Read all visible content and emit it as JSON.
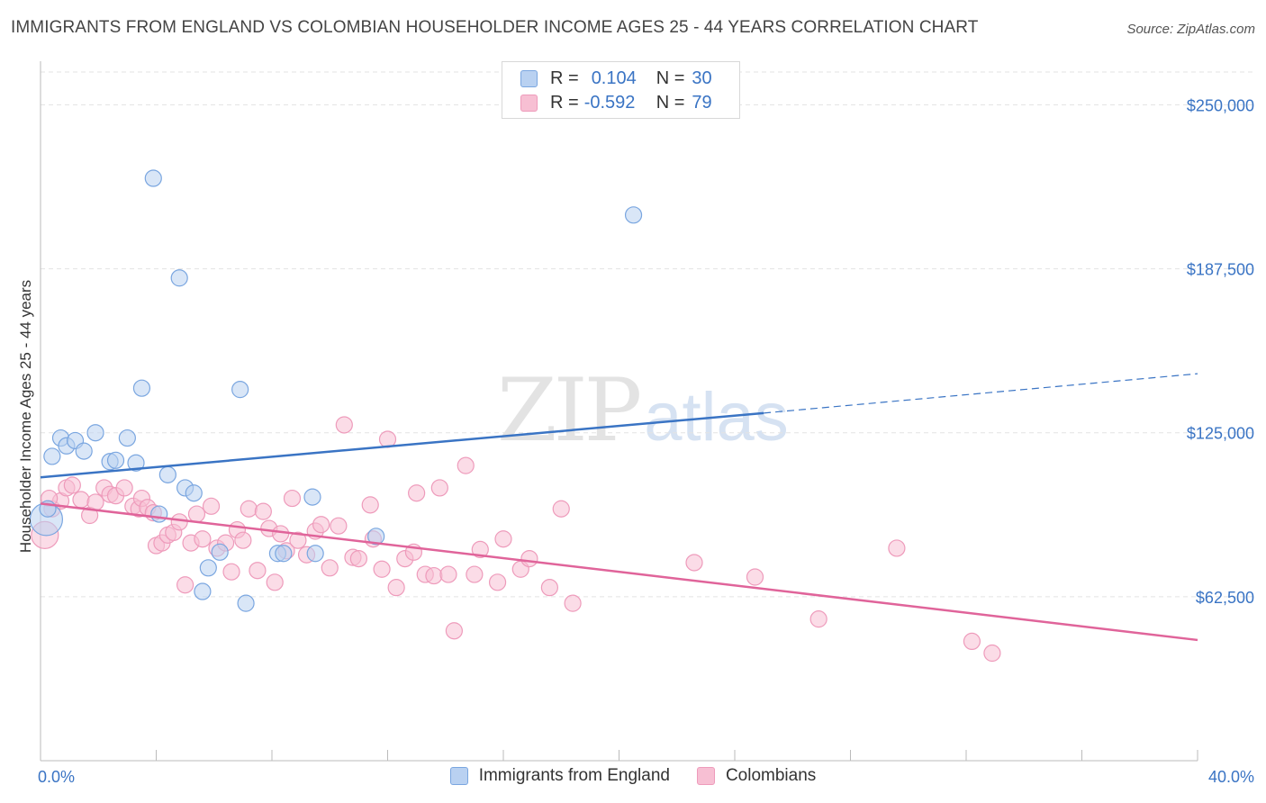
{
  "title": "IMMIGRANTS FROM ENGLAND VS COLOMBIAN HOUSEHOLDER INCOME AGES 25 - 44 YEARS CORRELATION CHART",
  "source": "Source: ZipAtlas.com",
  "watermark": {
    "zip": "ZIP",
    "atlas": "atlas"
  },
  "colors": {
    "blue": "#3a74c4",
    "blue_fill": "#b9d1f1",
    "blue_stroke": "#7aa6e0",
    "pink": "#e0649a",
    "pink_fill": "#f7bfd3",
    "pink_stroke": "#ee9bbb",
    "grid": "#e3e3e3"
  },
  "legend_top": {
    "rows": [
      {
        "r_label": "R =",
        "r_value": "0.104",
        "n_label": "N =",
        "n_value": "30"
      },
      {
        "r_label": "R =",
        "r_value": "-0.592",
        "n_label": "N =",
        "n_value": "79"
      }
    ]
  },
  "legend_bottom": [
    "Immigrants from England",
    "Colombians"
  ],
  "chart_data": {
    "type": "scatter",
    "title": "IMMIGRANTS FROM ENGLAND VS COLOMBIAN HOUSEHOLDER INCOME AGES 25 - 44 YEARS CORRELATION CHART",
    "xlabel": "",
    "ylabel": "Householder Income Ages 25 - 44 years",
    "xlim": [
      0,
      40
    ],
    "ylim": [
      0,
      262500
    ],
    "x_tick_labels": [
      "0.0%",
      "40.0%"
    ],
    "y_ticks": [
      62500,
      125000,
      187500,
      250000
    ],
    "y_tick_labels": [
      "$62,500",
      "$125,000",
      "$187,500",
      "$250,000"
    ],
    "series": [
      {
        "name": "Immigrants from England",
        "r": 0.104,
        "n": 30,
        "trend": {
          "x0": 0,
          "y0": 108000,
          "x1": 25,
          "y1": 132500,
          "x_dash_end": 40,
          "y_dash_end": 147500
        },
        "points": [
          [
            0.2,
            92000
          ],
          [
            0.4,
            116000
          ],
          [
            0.7,
            123000
          ],
          [
            0.9,
            120000
          ],
          [
            1.2,
            122000
          ],
          [
            1.5,
            118000
          ],
          [
            1.9,
            125000
          ],
          [
            2.4,
            114000
          ],
          [
            2.6,
            114500
          ],
          [
            3.0,
            123000
          ],
          [
            3.3,
            113500
          ],
          [
            3.5,
            142000
          ],
          [
            3.9,
            222000
          ],
          [
            4.1,
            94000
          ],
          [
            4.4,
            109000
          ],
          [
            4.8,
            184000
          ],
          [
            5.0,
            104000
          ],
          [
            5.3,
            102000
          ],
          [
            5.6,
            64500
          ],
          [
            5.8,
            73500
          ],
          [
            6.2,
            79500
          ],
          [
            6.9,
            141500
          ],
          [
            7.1,
            60000
          ],
          [
            8.2,
            79000
          ],
          [
            8.4,
            79000
          ],
          [
            9.4,
            100500
          ],
          [
            9.5,
            79000
          ],
          [
            11.6,
            85500
          ],
          [
            20.5,
            208000
          ],
          [
            0.25,
            96000
          ]
        ],
        "sizes": [
          [
            0.2,
            36
          ]
        ]
      },
      {
        "name": "Colombians",
        "r": -0.592,
        "n": 79,
        "trend": {
          "x0": 0,
          "y0": 98000,
          "x1": 40,
          "y1": 46000
        },
        "points": [
          [
            0.15,
            86000
          ],
          [
            0.4,
            96000
          ],
          [
            0.7,
            99000
          ],
          [
            0.9,
            104000
          ],
          [
            1.1,
            105000
          ],
          [
            1.4,
            99500
          ],
          [
            1.7,
            93500
          ],
          [
            1.9,
            98500
          ],
          [
            2.2,
            104000
          ],
          [
            2.4,
            101500
          ],
          [
            2.6,
            101000
          ],
          [
            2.9,
            104000
          ],
          [
            3.2,
            97000
          ],
          [
            3.4,
            96000
          ],
          [
            3.5,
            100000
          ],
          [
            3.7,
            96500
          ],
          [
            3.9,
            94500
          ],
          [
            4.0,
            82000
          ],
          [
            4.2,
            83000
          ],
          [
            4.4,
            86000
          ],
          [
            4.6,
            87000
          ],
          [
            4.8,
            91000
          ],
          [
            5.0,
            67000
          ],
          [
            5.2,
            83000
          ],
          [
            5.4,
            94000
          ],
          [
            5.6,
            84500
          ],
          [
            5.9,
            97000
          ],
          [
            6.1,
            81000
          ],
          [
            6.4,
            83000
          ],
          [
            6.6,
            72000
          ],
          [
            6.8,
            88000
          ],
          [
            7.0,
            84000
          ],
          [
            7.2,
            96000
          ],
          [
            7.5,
            72500
          ],
          [
            7.7,
            95000
          ],
          [
            7.9,
            88500
          ],
          [
            8.1,
            68000
          ],
          [
            8.3,
            86500
          ],
          [
            8.5,
            80000
          ],
          [
            8.7,
            100000
          ],
          [
            8.9,
            84000
          ],
          [
            9.2,
            78500
          ],
          [
            9.5,
            87500
          ],
          [
            9.7,
            90000
          ],
          [
            10.0,
            73500
          ],
          [
            10.3,
            89500
          ],
          [
            10.5,
            128000
          ],
          [
            10.8,
            77500
          ],
          [
            11.0,
            77000
          ],
          [
            11.4,
            97500
          ],
          [
            11.5,
            84500
          ],
          [
            11.8,
            73000
          ],
          [
            12.0,
            122500
          ],
          [
            12.3,
            66000
          ],
          [
            12.6,
            77000
          ],
          [
            12.9,
            79500
          ],
          [
            13.0,
            102000
          ],
          [
            13.3,
            71000
          ],
          [
            13.6,
            70500
          ],
          [
            13.8,
            104000
          ],
          [
            14.1,
            71000
          ],
          [
            14.3,
            49500
          ],
          [
            14.7,
            112500
          ],
          [
            15.2,
            80500
          ],
          [
            15.0,
            71000
          ],
          [
            15.8,
            68000
          ],
          [
            16.0,
            84500
          ],
          [
            16.6,
            73000
          ],
          [
            16.9,
            77000
          ],
          [
            17.6,
            66000
          ],
          [
            18.0,
            96000
          ],
          [
            18.4,
            60000
          ],
          [
            22.6,
            75500
          ],
          [
            24.7,
            70000
          ],
          [
            26.9,
            54000
          ],
          [
            29.6,
            81000
          ],
          [
            32.2,
            45500
          ],
          [
            32.9,
            41000
          ],
          [
            0.3,
            100000
          ]
        ],
        "sizes": [
          [
            0.15,
            30
          ]
        ]
      }
    ]
  }
}
